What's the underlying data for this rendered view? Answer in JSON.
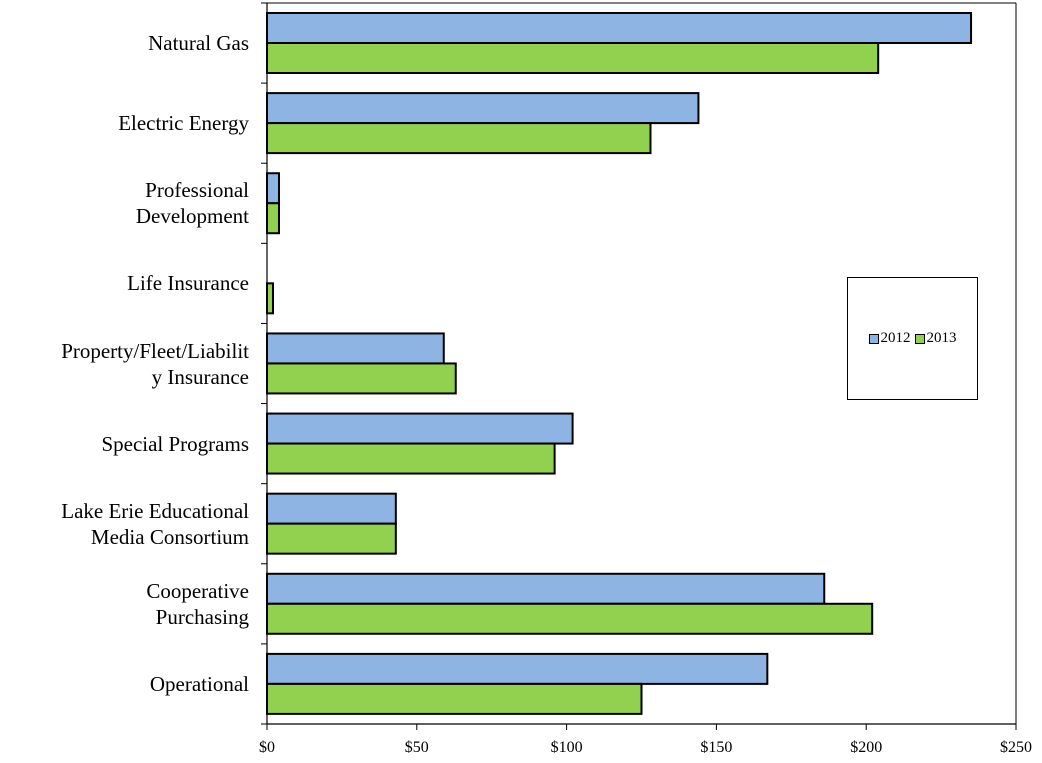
{
  "chart_data": {
    "type": "bar",
    "orientation": "horizontal",
    "categories": [
      "Natural Gas",
      "Electric Energy",
      "Professional \nDevelopment",
      "Life Insurance",
      "Property/Fleet/Liabilit\ny Insurance",
      "Special Programs",
      "Lake Erie Educational\nMedia Consortium",
      "Cooperative\nPurchasing ",
      "Operational"
    ],
    "series": [
      {
        "name": "2012",
        "color": "#8eb4e3",
        "values": [
          235,
          144,
          4,
          0,
          59,
          102,
          43,
          186,
          167
        ]
      },
      {
        "name": "2013",
        "color": "#92d050",
        "values": [
          204,
          128,
          4,
          2,
          63,
          96,
          43,
          202,
          125
        ]
      }
    ],
    "xlim": [
      0,
      250
    ],
    "xticks": [
      0,
      50,
      100,
      150,
      200,
      250
    ],
    "xtick_labels": [
      "$0",
      "$50",
      "$100",
      "$150",
      "$200",
      "$250"
    ],
    "title": "",
    "xlabel": "",
    "ylabel": "",
    "grid": false,
    "legend_position": "right"
  }
}
